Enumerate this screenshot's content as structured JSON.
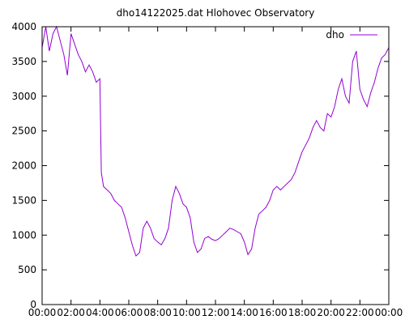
{
  "chart_data": {
    "type": "line",
    "title": "dho14122025.dat Hlohovec Observatory",
    "xlabel": "",
    "ylabel": "",
    "xlim": [
      0,
      24
    ],
    "ylim": [
      0,
      4000
    ],
    "x_ticks": [
      "00:00",
      "02:00",
      "04:00",
      "06:00",
      "08:00",
      "10:00",
      "12:00",
      "14:00",
      "16:00",
      "18:00",
      "20:00",
      "22:00",
      "00:00"
    ],
    "y_ticks": [
      0,
      500,
      1000,
      1500,
      2000,
      2500,
      3000,
      3500,
      4000
    ],
    "grid": false,
    "legend_position": "top-right",
    "series": [
      {
        "name": "dho",
        "color": "#9400d3",
        "x": [
          0.0,
          0.25,
          0.5,
          0.75,
          1.0,
          1.25,
          1.5,
          1.75,
          2.0,
          2.25,
          2.5,
          2.75,
          3.0,
          3.25,
          3.5,
          3.75,
          4.0,
          4.1,
          4.25,
          4.5,
          4.75,
          5.0,
          5.25,
          5.5,
          5.75,
          6.0,
          6.25,
          6.5,
          6.75,
          7.0,
          7.25,
          7.5,
          7.75,
          8.0,
          8.25,
          8.5,
          8.75,
          9.0,
          9.25,
          9.5,
          9.75,
          10.0,
          10.25,
          10.5,
          10.75,
          11.0,
          11.25,
          11.5,
          11.75,
          12.0,
          12.25,
          12.5,
          12.75,
          13.0,
          13.25,
          13.5,
          13.75,
          14.0,
          14.25,
          14.5,
          14.75,
          15.0,
          15.25,
          15.5,
          15.75,
          16.0,
          16.25,
          16.5,
          16.75,
          17.0,
          17.25,
          17.5,
          17.75,
          18.0,
          18.25,
          18.5,
          18.75,
          19.0,
          19.25,
          19.5,
          19.75,
          20.0,
          20.25,
          20.5,
          20.75,
          21.0,
          21.25,
          21.5,
          21.75,
          22.0,
          22.25,
          22.5,
          22.75,
          23.0,
          23.25,
          23.5,
          23.75,
          24.0
        ],
        "values": [
          3700,
          4000,
          3650,
          3900,
          4000,
          3800,
          3600,
          3300,
          3900,
          3750,
          3600,
          3500,
          3350,
          3450,
          3350,
          3200,
          3250,
          1900,
          1700,
          1650,
          1600,
          1500,
          1450,
          1400,
          1250,
          1050,
          850,
          700,
          750,
          1100,
          1200,
          1100,
          950,
          900,
          860,
          950,
          1100,
          1500,
          1700,
          1600,
          1450,
          1400,
          1250,
          900,
          750,
          800,
          950,
          980,
          940,
          920,
          950,
          1000,
          1050,
          1100,
          1080,
          1050,
          1020,
          900,
          720,
          800,
          1100,
          1300,
          1350,
          1400,
          1500,
          1650,
          1700,
          1650,
          1700,
          1750,
          1800,
          1900,
          2050,
          2200,
          2300,
          2400,
          2550,
          2650,
          2550,
          2500,
          2750,
          2700,
          2850,
          3100,
          3250,
          3000,
          2900,
          3500,
          3650,
          3100,
          2950,
          2850,
          3050,
          3200,
          3400,
          3550,
          3600,
          3700
        ]
      }
    ]
  }
}
